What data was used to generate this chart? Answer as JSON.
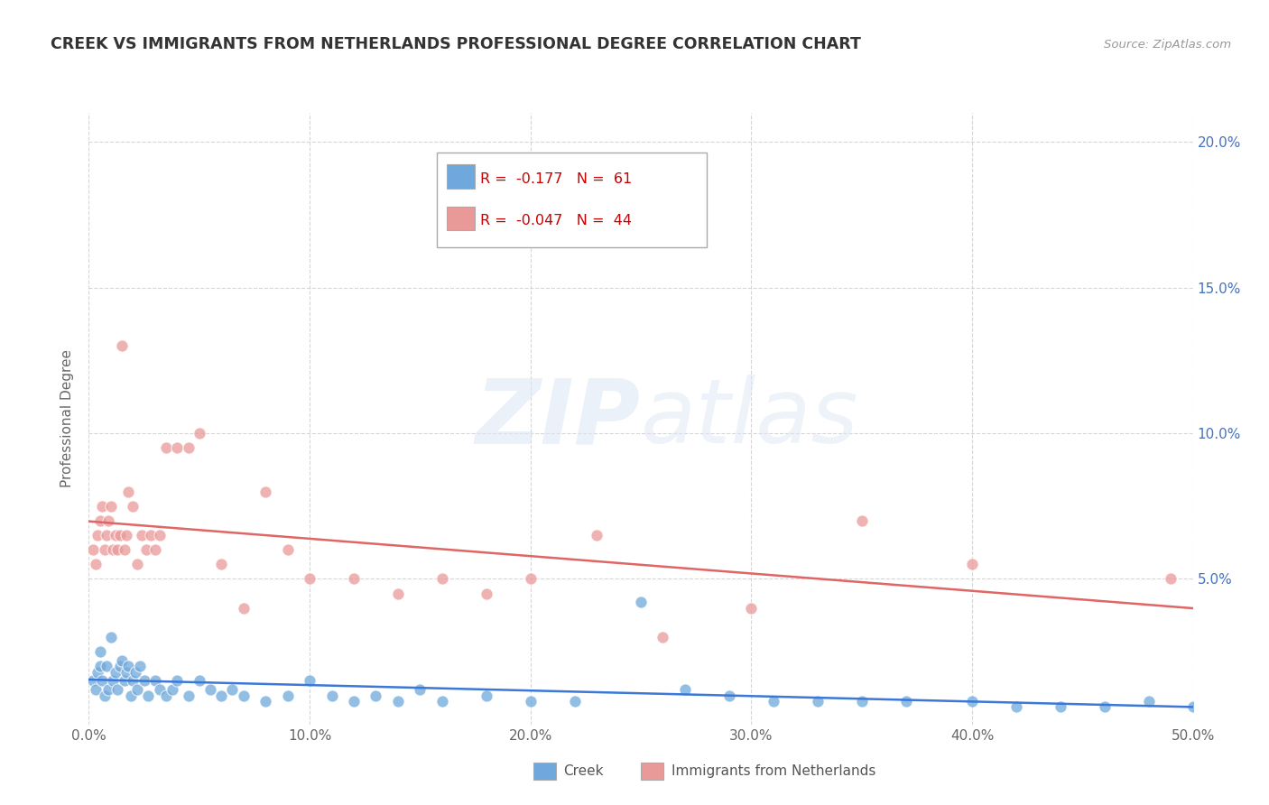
{
  "title": "CREEK VS IMMIGRANTS FROM NETHERLANDS PROFESSIONAL DEGREE CORRELATION CHART",
  "source": "Source: ZipAtlas.com",
  "ylabel_label": "Professional Degree",
  "xlim": [
    0.0,
    0.5
  ],
  "ylim": [
    0.0,
    0.21
  ],
  "xtick_labels": [
    "0.0%",
    "10.0%",
    "20.0%",
    "30.0%",
    "40.0%",
    "50.0%"
  ],
  "xtick_vals": [
    0.0,
    0.1,
    0.2,
    0.3,
    0.4,
    0.5
  ],
  "ytick_vals": [
    0.05,
    0.1,
    0.15,
    0.2
  ],
  "ytick_labels": [
    "5.0%",
    "10.0%",
    "15.0%",
    "20.0%"
  ],
  "creek_color": "#6fa8dc",
  "netherlands_color": "#ea9999",
  "creek_line_color": "#3c78d8",
  "netherlands_line_color": "#e06666",
  "creek_R": -0.177,
  "creek_N": 61,
  "netherlands_R": -0.047,
  "netherlands_N": 44,
  "legend_label_creek": "Creek",
  "legend_label_netherlands": "Immigrants from Netherlands",
  "watermark_zip": "ZIP",
  "watermark_atlas": "atlas",
  "background_color": "#ffffff",
  "grid_color": "#cccccc",
  "creek_x": [
    0.002,
    0.003,
    0.004,
    0.005,
    0.005,
    0.006,
    0.007,
    0.008,
    0.009,
    0.01,
    0.011,
    0.012,
    0.013,
    0.014,
    0.015,
    0.016,
    0.017,
    0.018,
    0.019,
    0.02,
    0.021,
    0.022,
    0.023,
    0.025,
    0.027,
    0.03,
    0.032,
    0.035,
    0.038,
    0.04,
    0.045,
    0.05,
    0.055,
    0.06,
    0.065,
    0.07,
    0.08,
    0.09,
    0.1,
    0.11,
    0.12,
    0.13,
    0.14,
    0.15,
    0.16,
    0.18,
    0.2,
    0.22,
    0.25,
    0.27,
    0.29,
    0.31,
    0.33,
    0.35,
    0.37,
    0.4,
    0.42,
    0.44,
    0.46,
    0.48,
    0.5
  ],
  "creek_y": [
    0.015,
    0.012,
    0.018,
    0.02,
    0.025,
    0.015,
    0.01,
    0.02,
    0.012,
    0.03,
    0.015,
    0.018,
    0.012,
    0.02,
    0.022,
    0.015,
    0.018,
    0.02,
    0.01,
    0.015,
    0.018,
    0.012,
    0.02,
    0.015,
    0.01,
    0.015,
    0.012,
    0.01,
    0.012,
    0.015,
    0.01,
    0.015,
    0.012,
    0.01,
    0.012,
    0.01,
    0.008,
    0.01,
    0.015,
    0.01,
    0.008,
    0.01,
    0.008,
    0.012,
    0.008,
    0.01,
    0.008,
    0.008,
    0.042,
    0.012,
    0.01,
    0.008,
    0.008,
    0.008,
    0.008,
    0.008,
    0.006,
    0.006,
    0.006,
    0.008,
    0.006
  ],
  "netherlands_x": [
    0.002,
    0.003,
    0.004,
    0.005,
    0.006,
    0.007,
    0.008,
    0.009,
    0.01,
    0.011,
    0.012,
    0.013,
    0.014,
    0.015,
    0.016,
    0.017,
    0.018,
    0.02,
    0.022,
    0.024,
    0.026,
    0.028,
    0.03,
    0.032,
    0.035,
    0.04,
    0.045,
    0.05,
    0.06,
    0.07,
    0.08,
    0.09,
    0.1,
    0.12,
    0.14,
    0.16,
    0.18,
    0.2,
    0.23,
    0.26,
    0.3,
    0.35,
    0.4,
    0.49
  ],
  "netherlands_y": [
    0.06,
    0.055,
    0.065,
    0.07,
    0.075,
    0.06,
    0.065,
    0.07,
    0.075,
    0.06,
    0.065,
    0.06,
    0.065,
    0.13,
    0.06,
    0.065,
    0.08,
    0.075,
    0.055,
    0.065,
    0.06,
    0.065,
    0.06,
    0.065,
    0.095,
    0.095,
    0.095,
    0.1,
    0.055,
    0.04,
    0.08,
    0.06,
    0.05,
    0.05,
    0.045,
    0.05,
    0.045,
    0.05,
    0.065,
    0.03,
    0.04,
    0.07,
    0.055,
    0.05
  ]
}
